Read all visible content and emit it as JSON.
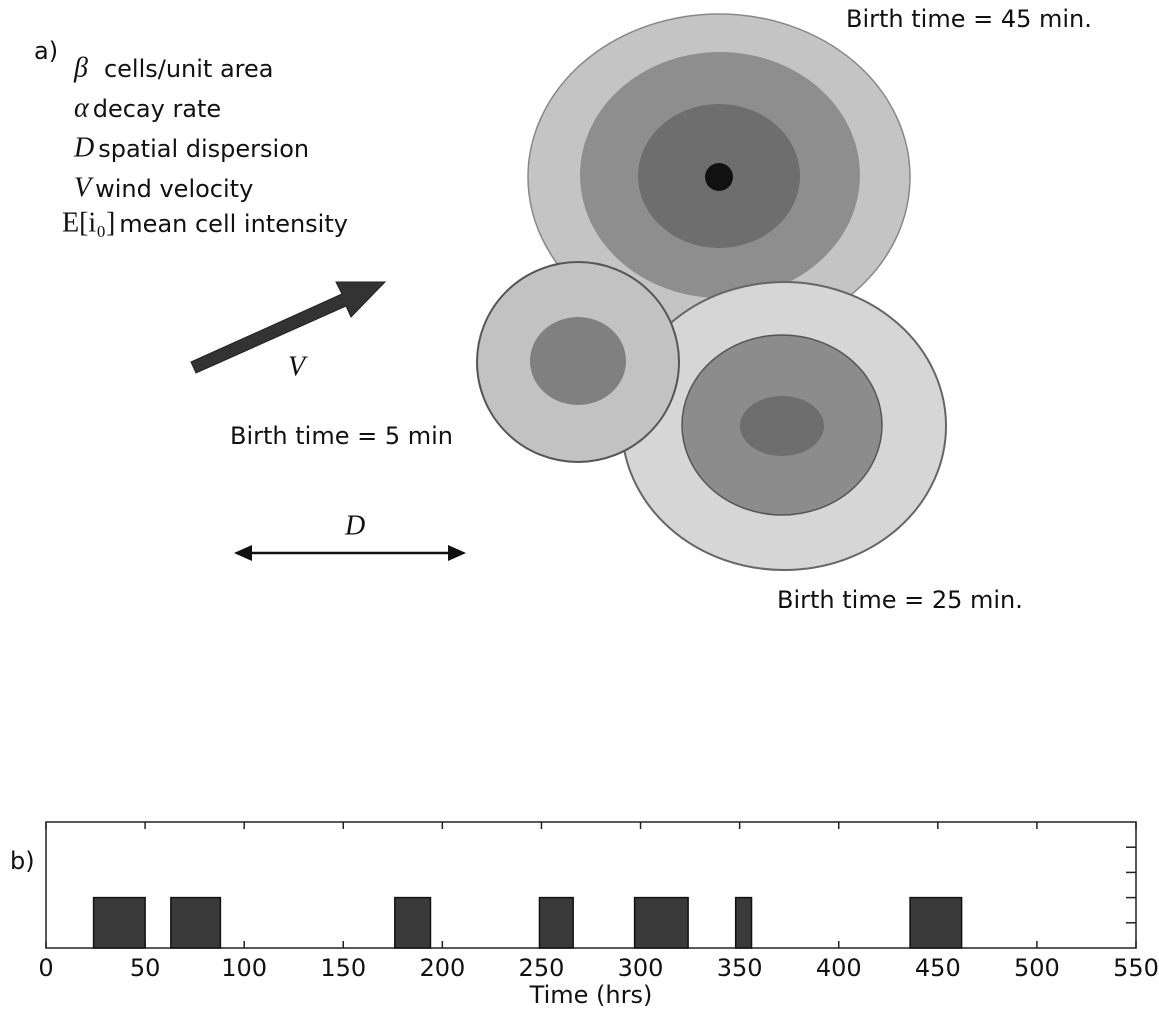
{
  "panel_a": {
    "label": "a)",
    "legend": [
      {
        "symbol": "β",
        "text": "cells/unit area"
      },
      {
        "symbol": "α",
        "text": "decay rate"
      },
      {
        "symbol": "D",
        "text": "spatial dispersion"
      },
      {
        "symbol": "V",
        "text": "wind velocity"
      },
      {
        "symbol": "E[i₀]",
        "text": "mean cell intensity"
      }
    ],
    "arrow_label": "V",
    "dispersion_label": "D",
    "cells": [
      {
        "label": "Birth time = 45 min."
      },
      {
        "label": "Birth time = 5 min"
      },
      {
        "label": "Birth time = 25 min."
      }
    ]
  },
  "chart_data": {
    "type": "interval",
    "label": "b)",
    "x_label": "Time (hrs)",
    "starts": [
      24,
      63,
      176,
      249,
      297,
      348,
      436
    ],
    "ends": [
      50,
      88,
      194,
      266,
      324,
      356,
      462
    ],
    "values": [
      2,
      2,
      2,
      2,
      2,
      2,
      2
    ],
    "color": "#3a3a3a",
    "xlim": [
      0,
      550
    ],
    "xticks": [
      0,
      50,
      100,
      150,
      200,
      250,
      300,
      350,
      400,
      450,
      500,
      550
    ],
    "ylim": [
      0,
      5
    ],
    "yticks": [
      1,
      2,
      3,
      4
    ]
  }
}
